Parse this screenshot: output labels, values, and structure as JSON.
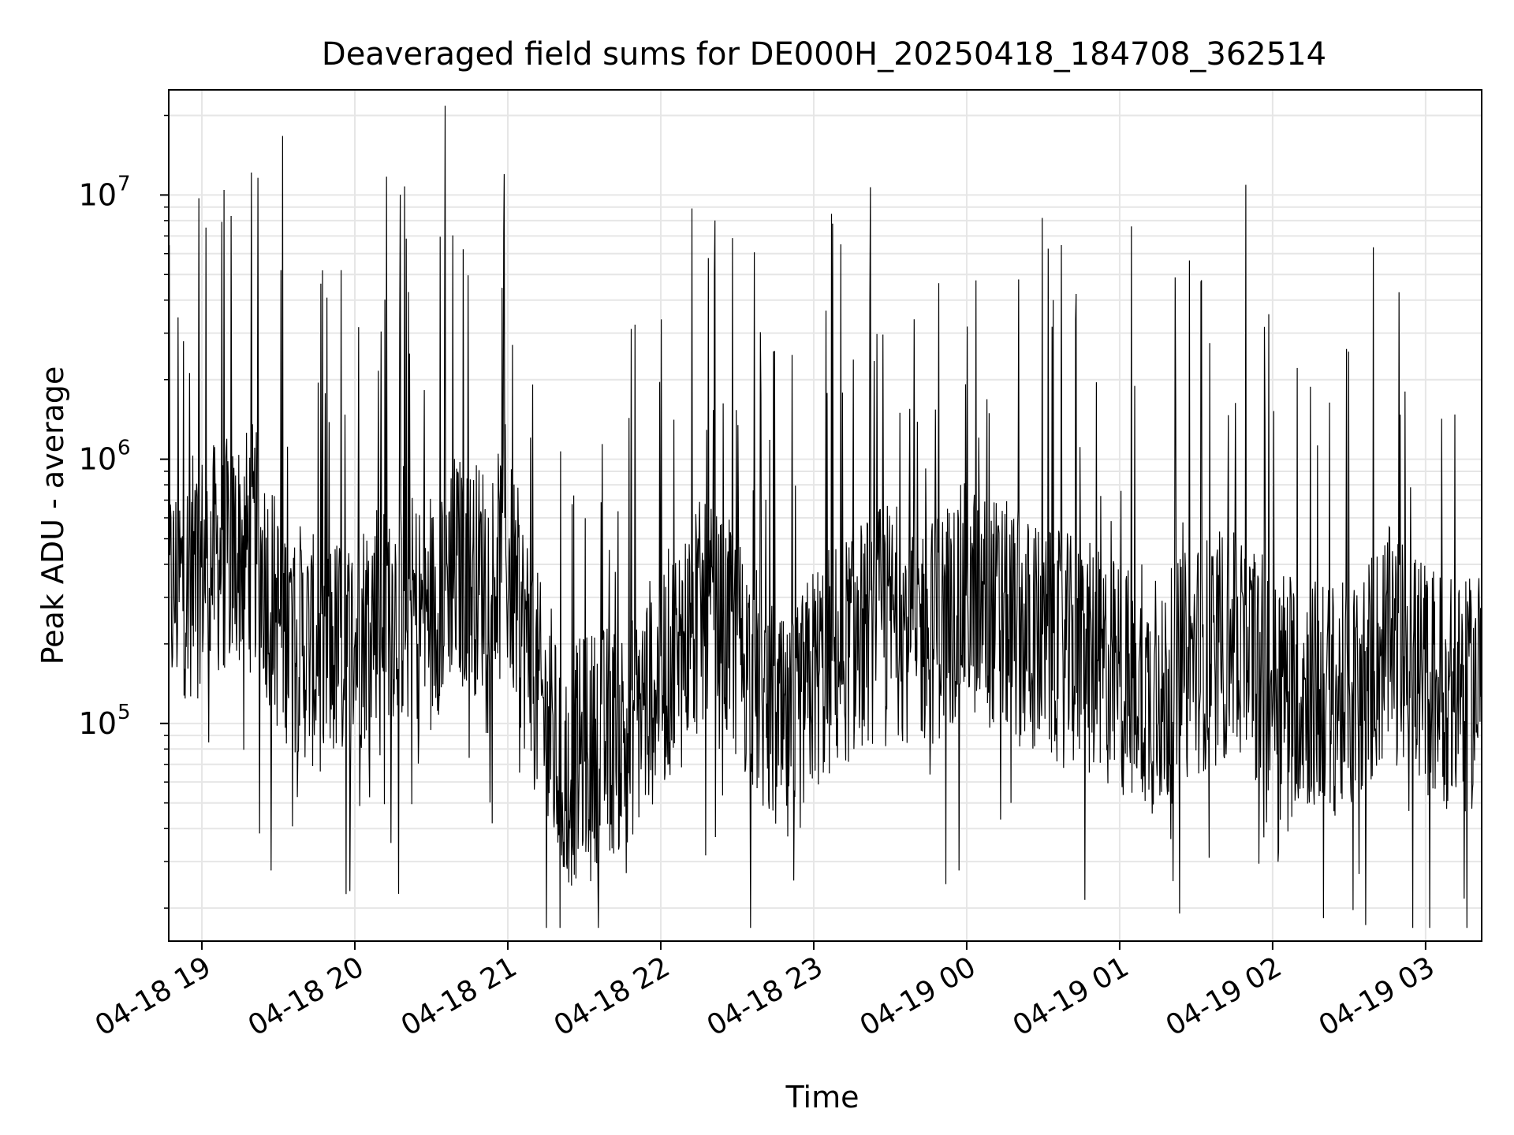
{
  "chart_data": {
    "type": "line",
    "title": "Deaveraged field sums for DE000H_20250418_184708_362514",
    "xlabel": "Time",
    "ylabel": "Peak ADU - average",
    "x_ticks": [
      "04-18 19",
      "04-18 20",
      "04-18 21",
      "04-18 22",
      "04-18 23",
      "04-19 00",
      "04-19 01",
      "04-19 02",
      "04-19 03"
    ],
    "x_range": [
      "2025-04-18 18:47",
      "2025-04-19 03:22"
    ],
    "y_scale": "log",
    "y_ticks": [
      {
        "value": 100000,
        "label": "10",
        "exp": "5"
      },
      {
        "value": 1000000,
        "label": "10",
        "exp": "6"
      },
      {
        "value": 10000000,
        "label": "10",
        "exp": "7"
      }
    ],
    "ylim": [
      15000,
      25000000
    ],
    "grid": true,
    "line_color": "#000000",
    "series": [
      {
        "x": [
          "2025-04-18 18:47",
          "2025-04-18 19:00",
          "2025-04-18 19:15",
          "2025-04-18 19:20",
          "2025-04-18 19:30",
          "2025-04-18 19:45",
          "2025-04-18 20:00",
          "2025-04-18 20:10",
          "2025-04-18 20:30",
          "2025-04-18 20:37",
          "2025-04-18 20:45",
          "2025-04-18 21:00",
          "2025-04-18 21:15",
          "2025-04-18 21:22",
          "2025-04-18 21:30",
          "2025-04-18 21:45",
          "2025-04-18 22:00",
          "2025-04-18 22:15",
          "2025-04-18 22:30",
          "2025-04-18 22:45",
          "2025-04-18 22:50",
          "2025-04-18 23:00",
          "2025-04-18 23:15",
          "2025-04-18 23:27",
          "2025-04-18 23:30",
          "2025-04-18 23:45",
          "2025-04-19 00:00",
          "2025-04-19 00:15",
          "2025-04-19 00:30",
          "2025-04-19 00:45",
          "2025-04-19 01:00",
          "2025-04-19 01:15",
          "2025-04-19 01:30",
          "2025-04-19 01:45",
          "2025-04-19 02:00",
          "2025-04-19 02:15",
          "2025-04-19 02:30",
          "2025-04-19 02:45",
          "2025-04-19 03:00",
          "2025-04-19 03:15",
          "2025-04-19 03:22"
        ],
        "values": [
          300000,
          400000,
          450000,
          500000,
          250000,
          180000,
          200000,
          300000,
          250000,
          400000,
          350000,
          400000,
          100000,
          60000,
          80000,
          90000,
          150000,
          250000,
          200000,
          100000,
          80000,
          150000,
          200000,
          250000,
          250000,
          220000,
          300000,
          250000,
          200000,
          180000,
          150000,
          120000,
          180000,
          200000,
          150000,
          130000,
          120000,
          200000,
          150000,
          120000,
          150000
        ]
      }
    ]
  }
}
